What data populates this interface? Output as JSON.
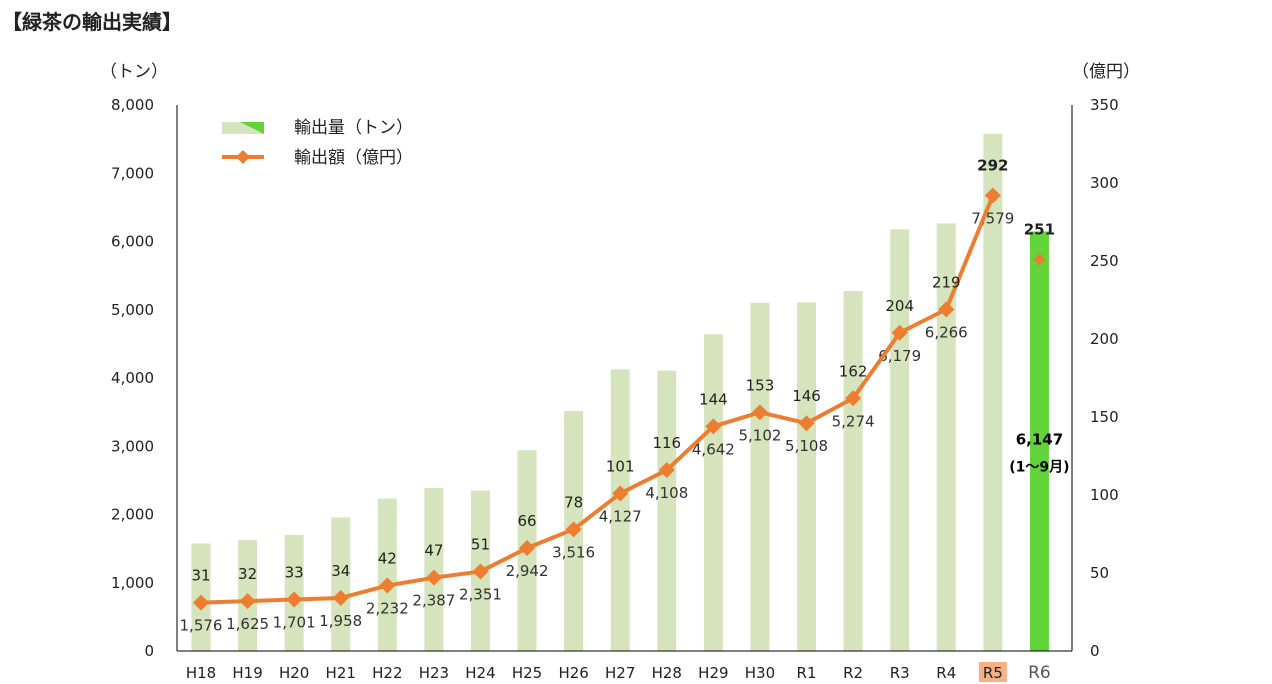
{
  "title": "【緑茶の輸出実績】",
  "chart_data": {
    "type": "bar",
    "categories": [
      "H18",
      "H19",
      "H20",
      "H21",
      "H22",
      "H23",
      "H24",
      "H25",
      "H26",
      "H27",
      "H28",
      "H29",
      "H30",
      "R1",
      "R2",
      "R3",
      "R4",
      "R5",
      "R6"
    ],
    "y_left_unit": "（トン）",
    "y_right_unit": "（億円）",
    "ylim_left": [
      0,
      8000
    ],
    "ylim_right": [
      0,
      350
    ],
    "yticks_left": [
      "0",
      "1,000",
      "2,000",
      "3,000",
      "4,000",
      "5,000",
      "6,000",
      "7,000",
      "8,000"
    ],
    "yticks_right": [
      "0",
      "50",
      "100",
      "150",
      "200",
      "250",
      "300",
      "350"
    ],
    "series": [
      {
        "name": "輸出量（トン）",
        "kind": "bar",
        "axis": "left",
        "color": "#d6e4bd",
        "values": [
          1576,
          1625,
          1701,
          1958,
          2232,
          2387,
          2351,
          2942,
          3516,
          4127,
          4108,
          4642,
          5102,
          5108,
          5274,
          6179,
          6266,
          7579,
          6147
        ],
        "labels": [
          "1,576",
          "1,625",
          "1,701",
          "1,958",
          "2,232",
          "2,387",
          "2,351",
          "2,942",
          "3,516",
          "4,127",
          "4,108",
          "4,642",
          "5,102",
          "5,108",
          "5,274",
          "6,179",
          "6,266",
          "7,579",
          "6,147"
        ]
      },
      {
        "name": "輸出額（億円）",
        "kind": "line",
        "axis": "right",
        "color": "#ed7d31",
        "values": [
          31,
          32,
          33,
          34,
          42,
          47,
          51,
          66,
          78,
          101,
          116,
          144,
          153,
          146,
          162,
          204,
          219,
          292,
          251
        ],
        "labels": [
          "31",
          "32",
          "33",
          "34",
          "42",
          "47",
          "51",
          "66",
          "78",
          "101",
          "116",
          "144",
          "153",
          "146",
          "162",
          "204",
          "219",
          "292",
          "251"
        ]
      }
    ],
    "highlight": {
      "bar_color": "#63d33a",
      "r6_note": "(1～9月)",
      "r5_label_bg": "#f4b183"
    },
    "legend_position": "top-left",
    "grid": false
  }
}
